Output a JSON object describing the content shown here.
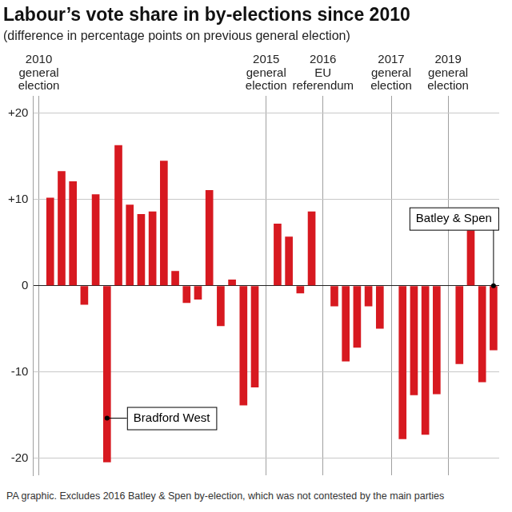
{
  "chart_data": {
    "type": "bar",
    "title": "Labour’s vote share in by-elections since 2010",
    "subtitle": "(difference in percentage points on previous general election)",
    "note": "PA graphic. Excludes 2016 Batley & Spen by-election, which was not contested by the main parties",
    "categories": [
      "2010 general election",
      null,
      null,
      null,
      null,
      null,
      null,
      null,
      null,
      null,
      null,
      null,
      null,
      null,
      null,
      null,
      null,
      null,
      null,
      null,
      "2015 general election",
      null,
      null,
      null,
      null,
      "2016 EU referendum",
      null,
      null,
      null,
      null,
      null,
      "2017 general election",
      null,
      null,
      null,
      null,
      "2019 general election",
      null,
      null,
      null,
      null
    ],
    "values": [
      null,
      10.2,
      13.3,
      12.1,
      -2.2,
      10.6,
      -20.5,
      16.3,
      9.4,
      8.3,
      8.6,
      14.5,
      1.7,
      -2.0,
      -1.6,
      11.1,
      -4.7,
      0.7,
      -13.9,
      -11.8,
      null,
      7.2,
      5.7,
      -0.9,
      8.6,
      null,
      -2.4,
      -8.8,
      -7.2,
      -2.4,
      -5.0,
      null,
      -17.8,
      -12.7,
      -17.3,
      -12.6,
      null,
      -9.1,
      6.4,
      -11.2,
      -7.5
    ],
    "color": "#d71920",
    "ylim": [
      -22,
      22
    ],
    "yticks": [
      {
        "value": -20,
        "label": "-20"
      },
      {
        "value": -10,
        "label": "-10"
      },
      0,
      {
        "value": 10,
        "label": "+10"
      },
      {
        "value": 20,
        "label": "+20"
      }
    ],
    "grid": true,
    "legend": "none",
    "data_labels": false,
    "annotations": [
      {
        "text": "Bradford West",
        "value": -20.5
      },
      {
        "text": "Batley & Spen",
        "value": -7.5
      }
    ]
  }
}
